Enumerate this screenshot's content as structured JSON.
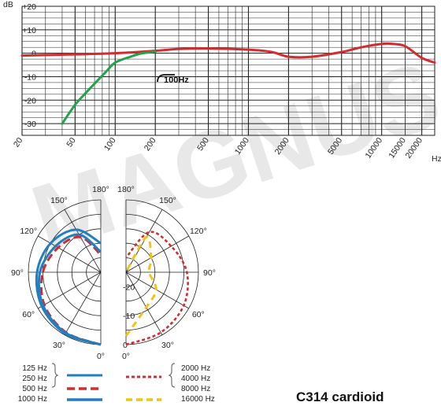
{
  "watermark": "MAGNUS",
  "colors": {
    "red": "#d12d30",
    "green": "#22a24a",
    "blue": "#1f7fc0",
    "yellow": "#f1c40f",
    "grid": "#222222",
    "watermark": "#d6d6d6"
  },
  "chart_data": [
    {
      "type": "line",
      "ylabel": "dB",
      "xlabel": "Hz",
      "ylim": [
        -35,
        20
      ],
      "xlim": [
        20,
        25000
      ],
      "x_scale": "log",
      "grid": true,
      "y_ticks": [
        "+20",
        "+10",
        "0",
        "-10",
        "-20",
        "-30"
      ],
      "x_ticks": [
        "20",
        "50",
        "100",
        "200",
        "500",
        "1000",
        "2000",
        "5000",
        "10000",
        "15000",
        "20000"
      ],
      "annotation": "100Hz",
      "series": [
        {
          "color": "#d12d30",
          "x": [
            20,
            50,
            100,
            200,
            300,
            500,
            1000,
            1500,
            2000,
            3000,
            5000,
            7000,
            10000,
            12000,
            15000,
            20000,
            25000
          ],
          "y": [
            -1,
            -0.5,
            0,
            1,
            1.8,
            2,
            1.5,
            0.5,
            -1.5,
            -1.5,
            0.5,
            2.5,
            4,
            4,
            3,
            -2,
            -4
          ]
        },
        {
          "color": "#22a24a",
          "x": [
            40,
            50,
            60,
            70,
            85,
            100,
            130,
            160,
            200
          ],
          "y": [
            -30,
            -22,
            -17,
            -13,
            -8,
            -4,
            -1.5,
            0,
            0.6
          ]
        }
      ]
    },
    {
      "type": "polar",
      "angle_labels": [
        "0°",
        "30°",
        "60°",
        "90°",
        "120°",
        "150°",
        "180°"
      ],
      "radial_labels": [
        "0",
        "-10",
        "-20"
      ],
      "rlim_db": [
        -25,
        0
      ],
      "legend_left": [
        "125 Hz",
        "250 Hz",
        "500 Hz",
        "1000 Hz"
      ],
      "legend_right": [
        "2000 Hz",
        "4000 Hz",
        "8000 Hz",
        "16000 Hz"
      ],
      "series": [
        {
          "name": "125 Hz / 250 Hz",
          "color": "#1f7fc0",
          "side": "left",
          "angles": [
            0,
            30,
            60,
            90,
            120,
            150,
            180
          ],
          "db": [
            0,
            -0.5,
            -1.5,
            -3,
            -5,
            -8,
            -15
          ]
        },
        {
          "name": "500 Hz",
          "color": "#d12d30",
          "side": "left",
          "angles": [
            0,
            30,
            60,
            90,
            120,
            150,
            180
          ],
          "db": [
            0,
            -1,
            -2.5,
            -5,
            -8,
            -11,
            -19
          ]
        },
        {
          "name": "1000 Hz",
          "color": "#1f7fc0",
          "side": "left",
          "angles": [
            0,
            30,
            60,
            90,
            120,
            150,
            180
          ],
          "db": [
            0,
            -0.8,
            -2,
            -4,
            -7,
            -10,
            -18
          ]
        },
        {
          "name": "2000 Hz / 4000 Hz / 8000 Hz",
          "color": "#d12d30",
          "side": "right",
          "angles": [
            0,
            30,
            60,
            90,
            120,
            150,
            180
          ],
          "db": [
            0,
            -1,
            -2,
            -4,
            -7,
            -9,
            -20
          ]
        },
        {
          "name": "16000 Hz",
          "color": "#f1c40f",
          "side": "right",
          "angles": [
            0,
            30,
            60,
            90,
            120,
            150,
            180
          ],
          "db": [
            -3,
            -11,
            -13,
            -17,
            -15,
            -11,
            -25
          ]
        }
      ]
    }
  ],
  "product_title": "C314 cardioid"
}
